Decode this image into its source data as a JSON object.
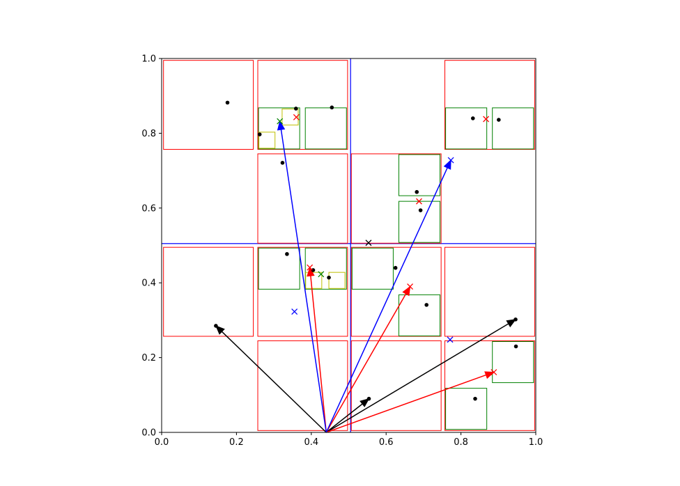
{
  "chart_data": {
    "type": "scatter",
    "title": "",
    "xlabel": "",
    "ylabel": "",
    "xlim": [
      0,
      1
    ],
    "ylim": [
      0,
      1
    ],
    "grid": false,
    "x_ticks": [
      "0.0",
      "0.2",
      "0.4",
      "0.6",
      "0.8",
      "1.0"
    ],
    "y_ticks": [
      "0.0",
      "0.2",
      "0.4",
      "0.6",
      "0.8",
      "1.0"
    ],
    "colors": {
      "black": "#000000",
      "red": "#ff0000",
      "green": "#008000",
      "yellow": "#bfbf00",
      "blue": "#0000ff"
    },
    "points": [
      [
        0.176,
        0.882
      ],
      [
        0.359,
        0.866
      ],
      [
        0.455,
        0.869
      ],
      [
        0.262,
        0.797
      ],
      [
        0.323,
        0.721
      ],
      [
        0.832,
        0.84
      ],
      [
        0.901,
        0.836
      ],
      [
        0.682,
        0.643
      ],
      [
        0.692,
        0.594
      ],
      [
        0.335,
        0.477
      ],
      [
        0.405,
        0.434
      ],
      [
        0.447,
        0.414
      ],
      [
        0.625,
        0.44
      ],
      [
        0.708,
        0.341
      ],
      [
        0.145,
        0.285
      ],
      [
        0.947,
        0.23
      ],
      [
        0.554,
        0.09
      ],
      [
        0.838,
        0.09
      ],
      [
        0.946,
        0.302
      ]
    ],
    "markers_x": [
      {
        "x": 0.36,
        "y": 0.843,
        "color": "red"
      },
      {
        "x": 0.316,
        "y": 0.832,
        "color": "green"
      },
      {
        "x": 0.867,
        "y": 0.838,
        "color": "red"
      },
      {
        "x": 0.688,
        "y": 0.618,
        "color": "red"
      },
      {
        "x": 0.773,
        "y": 0.728,
        "color": "blue"
      },
      {
        "x": 0.553,
        "y": 0.507,
        "color": "black"
      },
      {
        "x": 0.396,
        "y": 0.441,
        "color": "red"
      },
      {
        "x": 0.426,
        "y": 0.423,
        "color": "green"
      },
      {
        "x": 0.355,
        "y": 0.323,
        "color": "blue"
      },
      {
        "x": 0.664,
        "y": 0.39,
        "color": "red"
      },
      {
        "x": 0.771,
        "y": 0.248,
        "color": "blue"
      },
      {
        "x": 0.888,
        "y": 0.161,
        "color": "red"
      }
    ],
    "boxes": [
      {
        "x0": 0.0,
        "y0": 0.505,
        "x1": 0.505,
        "y1": 1.0,
        "color": "blue"
      },
      {
        "x0": 0.505,
        "y0": 0.505,
        "x1": 1.0,
        "y1": 1.0,
        "color": "blue"
      },
      {
        "x0": 0.0,
        "y0": 0.0,
        "x1": 0.505,
        "y1": 0.505,
        "color": "blue"
      },
      {
        "x0": 0.505,
        "y0": 0.0,
        "x1": 1.0,
        "y1": 0.505,
        "color": "blue"
      },
      {
        "x0": 0.005,
        "y0": 0.757,
        "x1": 0.245,
        "y1": 0.995,
        "color": "red"
      },
      {
        "x0": 0.257,
        "y0": 0.757,
        "x1": 0.497,
        "y1": 0.995,
        "color": "red"
      },
      {
        "x0": 0.257,
        "y0": 0.506,
        "x1": 0.497,
        "y1": 0.745,
        "color": "red"
      },
      {
        "x0": 0.507,
        "y0": 0.506,
        "x1": 0.747,
        "y1": 0.745,
        "color": "red"
      },
      {
        "x0": 0.757,
        "y0": 0.757,
        "x1": 0.997,
        "y1": 0.995,
        "color": "red"
      },
      {
        "x0": 0.005,
        "y0": 0.257,
        "x1": 0.245,
        "y1": 0.495,
        "color": "red"
      },
      {
        "x0": 0.257,
        "y0": 0.257,
        "x1": 0.497,
        "y1": 0.495,
        "color": "red"
      },
      {
        "x0": 0.507,
        "y0": 0.257,
        "x1": 0.747,
        "y1": 0.495,
        "color": "red"
      },
      {
        "x0": 0.757,
        "y0": 0.257,
        "x1": 0.997,
        "y1": 0.495,
        "color": "red"
      },
      {
        "x0": 0.257,
        "y0": 0.005,
        "x1": 0.497,
        "y1": 0.245,
        "color": "red"
      },
      {
        "x0": 0.507,
        "y0": 0.005,
        "x1": 0.747,
        "y1": 0.245,
        "color": "red"
      },
      {
        "x0": 0.757,
        "y0": 0.005,
        "x1": 0.997,
        "y1": 0.245,
        "color": "red"
      },
      {
        "x0": 0.259,
        "y0": 0.758,
        "x1": 0.369,
        "y1": 0.868,
        "color": "green"
      },
      {
        "x0": 0.384,
        "y0": 0.758,
        "x1": 0.494,
        "y1": 0.868,
        "color": "green"
      },
      {
        "x0": 0.759,
        "y0": 0.758,
        "x1": 0.869,
        "y1": 0.868,
        "color": "green"
      },
      {
        "x0": 0.884,
        "y0": 0.758,
        "x1": 0.994,
        "y1": 0.868,
        "color": "green"
      },
      {
        "x0": 0.634,
        "y0": 0.633,
        "x1": 0.744,
        "y1": 0.743,
        "color": "green"
      },
      {
        "x0": 0.634,
        "y0": 0.508,
        "x1": 0.744,
        "y1": 0.618,
        "color": "green"
      },
      {
        "x0": 0.259,
        "y0": 0.383,
        "x1": 0.369,
        "y1": 0.493,
        "color": "green"
      },
      {
        "x0": 0.384,
        "y0": 0.383,
        "x1": 0.494,
        "y1": 0.493,
        "color": "green"
      },
      {
        "x0": 0.509,
        "y0": 0.383,
        "x1": 0.619,
        "y1": 0.493,
        "color": "green"
      },
      {
        "x0": 0.634,
        "y0": 0.258,
        "x1": 0.744,
        "y1": 0.368,
        "color": "green"
      },
      {
        "x0": 0.884,
        "y0": 0.133,
        "x1": 0.994,
        "y1": 0.243,
        "color": "green"
      },
      {
        "x0": 0.759,
        "y0": 0.008,
        "x1": 0.869,
        "y1": 0.118,
        "color": "green"
      },
      {
        "x0": 0.26,
        "y0": 0.76,
        "x1": 0.303,
        "y1": 0.803,
        "color": "yellow"
      },
      {
        "x0": 0.322,
        "y0": 0.822,
        "x1": 0.365,
        "y1": 0.865,
        "color": "yellow"
      },
      {
        "x0": 0.385,
        "y0": 0.385,
        "x1": 0.428,
        "y1": 0.428,
        "color": "yellow"
      },
      {
        "x0": 0.447,
        "y0": 0.385,
        "x1": 0.49,
        "y1": 0.428,
        "color": "yellow"
      }
    ],
    "arrows": [
      {
        "x0": 0.44,
        "y0": 0.0,
        "x1": 0.145,
        "y1": 0.285,
        "color": "black"
      },
      {
        "x0": 0.44,
        "y0": 0.0,
        "x1": 0.554,
        "y1": 0.09,
        "color": "black"
      },
      {
        "x0": 0.44,
        "y0": 0.0,
        "x1": 0.946,
        "y1": 0.302,
        "color": "black"
      },
      {
        "x0": 0.44,
        "y0": 0.0,
        "x1": 0.396,
        "y1": 0.441,
        "color": "red"
      },
      {
        "x0": 0.44,
        "y0": 0.0,
        "x1": 0.664,
        "y1": 0.39,
        "color": "red"
      },
      {
        "x0": 0.44,
        "y0": 0.0,
        "x1": 0.888,
        "y1": 0.161,
        "color": "red"
      },
      {
        "x0": 0.44,
        "y0": 0.0,
        "x1": 0.316,
        "y1": 0.832,
        "color": "blue"
      },
      {
        "x0": 0.44,
        "y0": 0.0,
        "x1": 0.773,
        "y1": 0.728,
        "color": "blue"
      }
    ]
  }
}
